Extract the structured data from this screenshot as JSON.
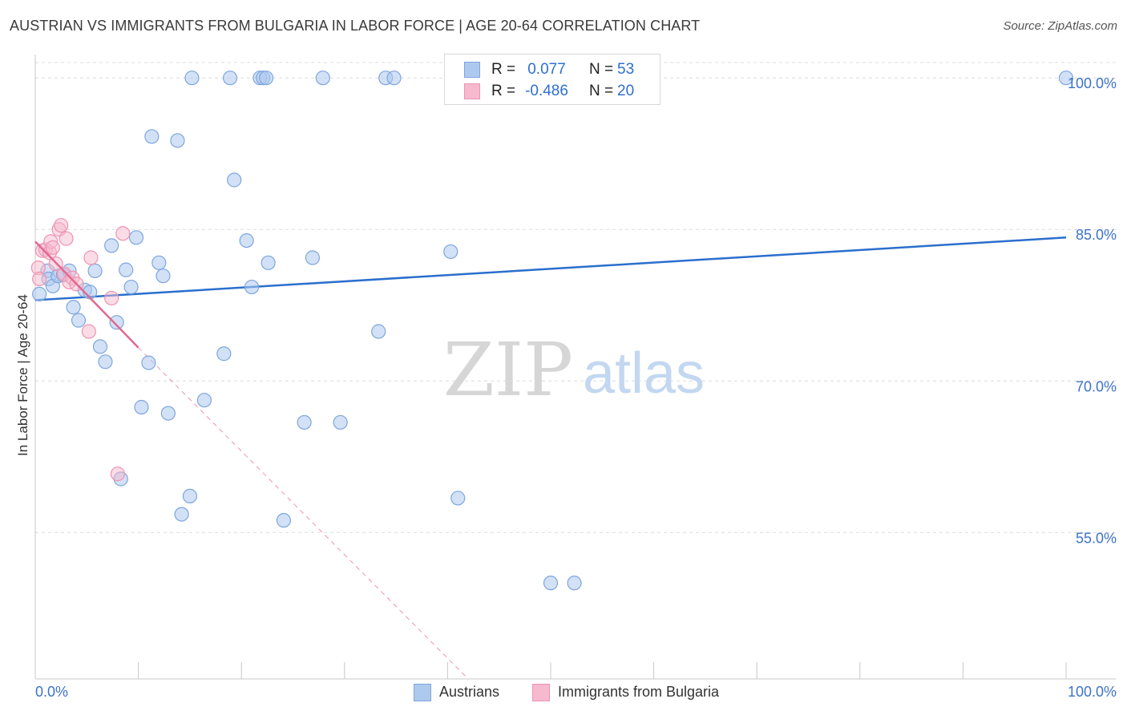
{
  "header": {
    "title": "AUSTRIAN VS IMMIGRANTS FROM BULGARIA IN LABOR FORCE | AGE 20-64 CORRELATION CHART",
    "source": "Source: ZipAtlas.com"
  },
  "watermark": {
    "zip": "ZIP",
    "atlas": "atlas"
  },
  "legend_top": {
    "rows": [
      {
        "r_label": "R =",
        "r_value": "0.077",
        "n_label": "N =",
        "n_value": "53"
      },
      {
        "r_label": "R =",
        "r_value": "-0.486",
        "n_label": "N =",
        "n_value": "20"
      }
    ]
  },
  "legend_bottom": {
    "series1": "Austrians",
    "series2": "Immigrants from Bulgaria"
  },
  "colors": {
    "blue_fill": "#adc9ee",
    "blue_stroke": "#7ea6dd",
    "blue_line": "#2a6fcc",
    "pink_fill": "#f6b9cd",
    "pink_stroke": "#ee93b1",
    "pink_line": "#e2688f",
    "tick_text": "#3d73c9",
    "grid": "#dcdcdc"
  },
  "chart_data": {
    "type": "scatter",
    "title": "AUSTRIAN VS IMMIGRANTS FROM BULGARIA IN LABOR FORCE | AGE 20-64 CORRELATION CHART",
    "xlabel": "",
    "ylabel": "In Labor Force | Age 20-64",
    "xlim": [
      0,
      100
    ],
    "ylim": [
      40.5,
      102
    ],
    "x_tick_labels": [
      "0.0%",
      "100.0%"
    ],
    "y_ticks": [
      55,
      70,
      85,
      100
    ],
    "y_tick_labels": [
      "55.0%",
      "70.0%",
      "85.0%",
      "100.0%"
    ],
    "grid": true,
    "series": [
      {
        "name": "Austrians",
        "color": "#adc9ee",
        "R": 0.077,
        "N": 53,
        "points": [
          [
            0.4,
            78.6
          ],
          [
            1.2,
            80.9
          ],
          [
            1.3,
            80.1
          ],
          [
            1.7,
            79.4
          ],
          [
            2.2,
            80.4
          ],
          [
            2.7,
            80.5
          ],
          [
            3.3,
            80.9
          ],
          [
            3.7,
            77.3
          ],
          [
            4.2,
            76.0
          ],
          [
            4.8,
            79.0
          ],
          [
            5.3,
            78.8
          ],
          [
            5.8,
            80.9
          ],
          [
            6.3,
            73.4
          ],
          [
            6.8,
            71.9
          ],
          [
            7.4,
            83.4
          ],
          [
            7.9,
            75.8
          ],
          [
            8.3,
            60.3
          ],
          [
            8.8,
            81.0
          ],
          [
            9.3,
            79.3
          ],
          [
            9.8,
            84.2
          ],
          [
            10.3,
            67.4
          ],
          [
            11.0,
            71.8
          ],
          [
            11.3,
            94.2
          ],
          [
            12.0,
            81.7
          ],
          [
            12.4,
            80.4
          ],
          [
            12.9,
            66.8
          ],
          [
            13.8,
            93.8
          ],
          [
            14.2,
            56.8
          ],
          [
            15.0,
            58.6
          ],
          [
            15.2,
            100.0
          ],
          [
            16.4,
            68.1
          ],
          [
            18.3,
            72.7
          ],
          [
            18.9,
            100.0
          ],
          [
            19.3,
            89.9
          ],
          [
            20.5,
            83.9
          ],
          [
            21.0,
            79.3
          ],
          [
            21.8,
            100.0
          ],
          [
            22.1,
            100.0
          ],
          [
            22.4,
            100.0
          ],
          [
            22.6,
            81.7
          ],
          [
            24.1,
            56.2
          ],
          [
            26.1,
            65.9
          ],
          [
            26.9,
            82.2
          ],
          [
            27.9,
            100.0
          ],
          [
            29.6,
            65.9
          ],
          [
            33.3,
            74.9
          ],
          [
            34.0,
            100.0
          ],
          [
            34.8,
            100.0
          ],
          [
            40.3,
            82.8
          ],
          [
            41.0,
            58.4
          ],
          [
            50.0,
            50.0
          ],
          [
            52.3,
            50.0
          ],
          [
            100.0,
            100.0
          ]
        ],
        "trend": [
          [
            0,
            78.0
          ],
          [
            100,
            84.2
          ]
        ]
      },
      {
        "name": "Immigrants from Bulgaria",
        "color": "#f6b9cd",
        "R": -0.486,
        "N": 20,
        "points": [
          [
            0.3,
            81.2
          ],
          [
            0.4,
            80.1
          ],
          [
            0.7,
            82.9
          ],
          [
            1.0,
            83.0
          ],
          [
            1.4,
            82.7
          ],
          [
            1.5,
            83.8
          ],
          [
            1.7,
            83.2
          ],
          [
            2.0,
            81.6
          ],
          [
            2.3,
            85.0
          ],
          [
            2.5,
            85.4
          ],
          [
            2.8,
            80.6
          ],
          [
            3.0,
            84.1
          ],
          [
            3.3,
            79.8
          ],
          [
            3.6,
            80.2
          ],
          [
            4.0,
            79.6
          ],
          [
            5.2,
            74.9
          ],
          [
            5.4,
            82.2
          ],
          [
            7.4,
            78.2
          ],
          [
            8.0,
            60.8
          ],
          [
            8.5,
            84.6
          ]
        ],
        "trend": [
          [
            0,
            83.8
          ],
          [
            10,
            73.3
          ]
        ],
        "trend_extrapolated": [
          [
            10,
            73.3
          ],
          [
            42,
            40.5
          ]
        ]
      }
    ]
  }
}
